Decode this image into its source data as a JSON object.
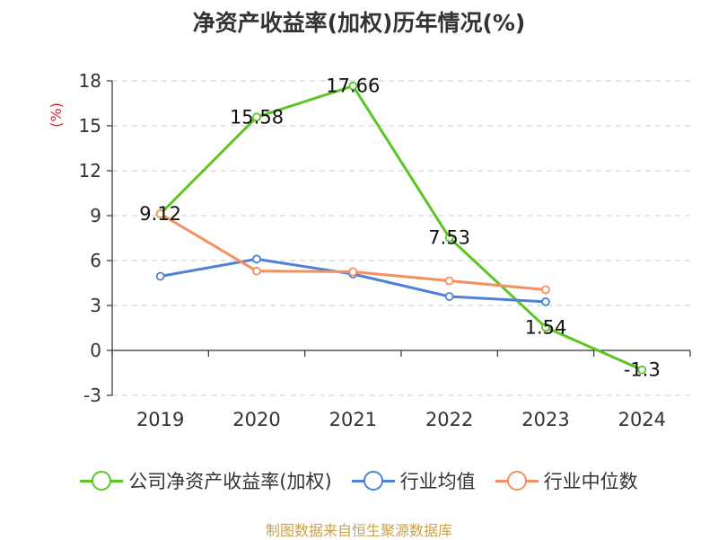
{
  "chart_data": {
    "type": "line",
    "title": "净资产收益率(加权)历年情况(%)",
    "ylabel": "(%)",
    "xlabel": "",
    "categories": [
      "2019",
      "2020",
      "2021",
      "2022",
      "2023",
      "2024"
    ],
    "ylim": [
      -3,
      18
    ],
    "yticks": [
      -3,
      0,
      3,
      6,
      9,
      12,
      15,
      18
    ],
    "grid": true,
    "legend_position": "bottom",
    "series": [
      {
        "name": "公司净资产收益率(加权)",
        "color": "#5bc524",
        "values": [
          9.12,
          15.58,
          17.66,
          7.53,
          1.54,
          -1.3
        ],
        "labels": [
          "9.12",
          "15.58",
          "17.66",
          "7.53",
          "1.54",
          "-1.3"
        ]
      },
      {
        "name": "行业均值",
        "color": "#4f81d7",
        "values": [
          4.95,
          6.1,
          5.1,
          3.6,
          3.25,
          null
        ]
      },
      {
        "name": "行业中位数",
        "color": "#f5905e",
        "values": [
          9.12,
          5.3,
          5.25,
          4.65,
          4.05,
          null
        ]
      }
    ],
    "source": "制图数据来自恒生聚源数据库"
  }
}
